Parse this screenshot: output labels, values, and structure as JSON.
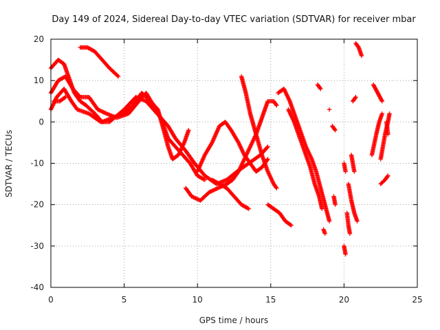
{
  "chart_data": {
    "type": "scatter",
    "title": "Day 149 of 2024, Sidereal Day-to-day VTEC variation (SDTVAR) for receiver mbar",
    "xlabel": "GPS time / hours",
    "ylabel": "SDTVAR / TECUs",
    "xlim": [
      0,
      25
    ],
    "ylim": [
      -40,
      20
    ],
    "xticks": [
      0,
      5,
      10,
      15,
      20,
      25
    ],
    "yticks": [
      -40,
      -30,
      -20,
      -10,
      0,
      10,
      20
    ],
    "grid": true,
    "marker": "+",
    "color": "#ff0000",
    "tracks": [
      [
        [
          0.0,
          3
        ],
        [
          0.4,
          6
        ],
        [
          0.9,
          8
        ],
        [
          1.4,
          5
        ],
        [
          1.8,
          3
        ],
        [
          2.6,
          2
        ],
        [
          3.4,
          0
        ],
        [
          4.0,
          0
        ],
        [
          5.0,
          3
        ],
        [
          5.8,
          6
        ],
        [
          6.5,
          5
        ],
        [
          7.0,
          3
        ],
        [
          7.5,
          1
        ],
        [
          8.0,
          -1
        ],
        [
          8.5,
          -4
        ],
        [
          9.2,
          -7
        ],
        [
          9.8,
          -10
        ],
        [
          10.5,
          -13
        ],
        [
          11.3,
          -15
        ],
        [
          12.0,
          -14
        ],
        [
          12.7,
          -12
        ],
        [
          13.5,
          -10
        ],
        [
          14.3,
          -8
        ],
        [
          14.8,
          -6
        ]
      ],
      [
        [
          0.0,
          13
        ],
        [
          0.5,
          15
        ],
        [
          0.9,
          14
        ],
        [
          1.3,
          10
        ],
        [
          1.6,
          7
        ],
        [
          2.0,
          5
        ],
        [
          2.4,
          4
        ],
        [
          3.0,
          2
        ],
        [
          3.5,
          0
        ],
        [
          4.2,
          1
        ],
        [
          5.0,
          2
        ],
        [
          5.6,
          4
        ],
        [
          6.2,
          7
        ],
        [
          6.8,
          5
        ],
        [
          7.3,
          3
        ],
        [
          7.7,
          -2
        ],
        [
          8.0,
          -6
        ],
        [
          8.3,
          -9
        ],
        [
          8.7,
          -8
        ],
        [
          9.1,
          -5
        ],
        [
          9.4,
          -2
        ]
      ],
      [
        [
          0.0,
          7
        ],
        [
          0.5,
          10
        ],
        [
          1.0,
          11
        ],
        [
          1.5,
          8
        ],
        [
          2.0,
          6
        ],
        [
          2.6,
          6
        ],
        [
          3.2,
          3
        ],
        [
          3.8,
          2
        ],
        [
          4.5,
          1
        ],
        [
          5.3,
          2
        ],
        [
          6.0,
          5
        ],
        [
          6.5,
          7
        ],
        [
          7.0,
          4
        ],
        [
          7.5,
          1
        ],
        [
          8.0,
          -4
        ],
        [
          8.5,
          -6
        ],
        [
          9.0,
          -8
        ],
        [
          9.5,
          -10
        ],
        [
          10.0,
          -13
        ],
        [
          10.5,
          -14
        ]
      ],
      [
        [
          0.2,
          5
        ],
        [
          0.6,
          5
        ],
        [
          1.0,
          6
        ]
      ],
      [
        [
          2.0,
          18
        ],
        [
          2.5,
          18
        ],
        [
          3.0,
          17
        ],
        [
          3.5,
          15
        ],
        [
          4.0,
          13
        ],
        [
          4.6,
          11
        ]
      ],
      [
        [
          9.2,
          -16
        ],
        [
          9.6,
          -18
        ],
        [
          10.2,
          -19
        ],
        [
          10.8,
          -17
        ],
        [
          11.4,
          -16
        ],
        [
          12.0,
          -15
        ],
        [
          12.4,
          -14
        ],
        [
          12.8,
          -12
        ],
        [
          13.2,
          -9
        ],
        [
          13.6,
          -6
        ],
        [
          14.0,
          -3
        ],
        [
          14.3,
          0
        ],
        [
          14.6,
          3
        ],
        [
          14.8,
          5
        ],
        [
          15.2,
          5
        ],
        [
          15.4,
          4
        ]
      ],
      [
        [
          10.0,
          -12
        ],
        [
          10.5,
          -8
        ],
        [
          11.0,
          -5
        ],
        [
          11.5,
          -1
        ],
        [
          11.9,
          0
        ],
        [
          12.3,
          -2
        ],
        [
          12.8,
          -5
        ],
        [
          13.2,
          -8
        ],
        [
          13.6,
          -10
        ],
        [
          14.0,
          -12
        ],
        [
          14.4,
          -11
        ],
        [
          14.8,
          -9
        ]
      ],
      [
        [
          11.0,
          -14
        ],
        [
          11.5,
          -15
        ],
        [
          12.0,
          -16
        ],
        [
          12.5,
          -18
        ],
        [
          13.0,
          -20
        ],
        [
          13.5,
          -21
        ]
      ],
      [
        [
          13.0,
          11
        ],
        [
          13.3,
          7
        ],
        [
          13.6,
          2
        ],
        [
          14.0,
          -3
        ],
        [
          14.4,
          -8
        ],
        [
          14.8,
          -12
        ],
        [
          15.2,
          -15
        ],
        [
          15.4,
          -16
        ]
      ],
      [
        [
          14.8,
          -20
        ],
        [
          15.2,
          -21
        ],
        [
          15.6,
          -22
        ],
        [
          16.0,
          -24
        ],
        [
          16.4,
          -25
        ]
      ],
      [
        [
          15.5,
          7
        ],
        [
          15.9,
          8
        ],
        [
          16.3,
          5
        ],
        [
          16.7,
          1
        ],
        [
          17.0,
          -2
        ],
        [
          17.4,
          -6
        ],
        [
          17.8,
          -9
        ],
        [
          18.1,
          -12
        ],
        [
          18.4,
          -16
        ],
        [
          18.7,
          -20
        ],
        [
          19.0,
          -24
        ]
      ],
      [
        [
          16.2,
          3
        ],
        [
          16.6,
          0
        ],
        [
          17.0,
          -4
        ],
        [
          17.4,
          -8
        ],
        [
          17.7,
          -11
        ],
        [
          18.0,
          -15
        ],
        [
          18.3,
          -18
        ],
        [
          18.5,
          -21
        ]
      ],
      [
        [
          18.2,
          9
        ],
        [
          18.4,
          8
        ]
      ],
      [
        [
          18.6,
          -26
        ],
        [
          18.7,
          -27
        ]
      ],
      [
        [
          19.0,
          3
        ]
      ],
      [
        [
          19.2,
          -1
        ],
        [
          19.4,
          -2
        ]
      ],
      [
        [
          19.3,
          -18
        ],
        [
          19.4,
          -20
        ]
      ],
      [
        [
          20.0,
          -10
        ],
        [
          20.1,
          -12
        ]
      ],
      [
        [
          20.0,
          -30
        ],
        [
          20.1,
          -32
        ]
      ],
      [
        [
          20.3,
          -15
        ],
        [
          20.5,
          -19
        ],
        [
          20.7,
          -22
        ],
        [
          20.9,
          -24
        ]
      ],
      [
        [
          20.2,
          -22
        ],
        [
          20.3,
          -25
        ],
        [
          20.4,
          -27
        ]
      ],
      [
        [
          20.5,
          -8
        ],
        [
          20.6,
          -10
        ],
        [
          20.7,
          -12
        ]
      ],
      [
        [
          20.6,
          5
        ],
        [
          20.8,
          6
        ]
      ],
      [
        [
          20.8,
          19
        ],
        [
          21.0,
          18
        ],
        [
          21.2,
          16
        ]
      ],
      [
        [
          21.9,
          -8
        ],
        [
          22.2,
          -3
        ],
        [
          22.4,
          0
        ],
        [
          22.6,
          2
        ]
      ],
      [
        [
          22.0,
          9
        ],
        [
          22.3,
          7
        ],
        [
          22.6,
          5
        ]
      ],
      [
        [
          22.5,
          -9
        ],
        [
          22.6,
          -7
        ],
        [
          22.8,
          -3
        ],
        [
          23.0,
          0
        ],
        [
          23.1,
          2
        ]
      ],
      [
        [
          22.5,
          -15
        ],
        [
          22.8,
          -14
        ],
        [
          23.0,
          -13
        ]
      ],
      [
        [
          22.9,
          0
        ],
        [
          23.0,
          -3
        ]
      ]
    ]
  }
}
